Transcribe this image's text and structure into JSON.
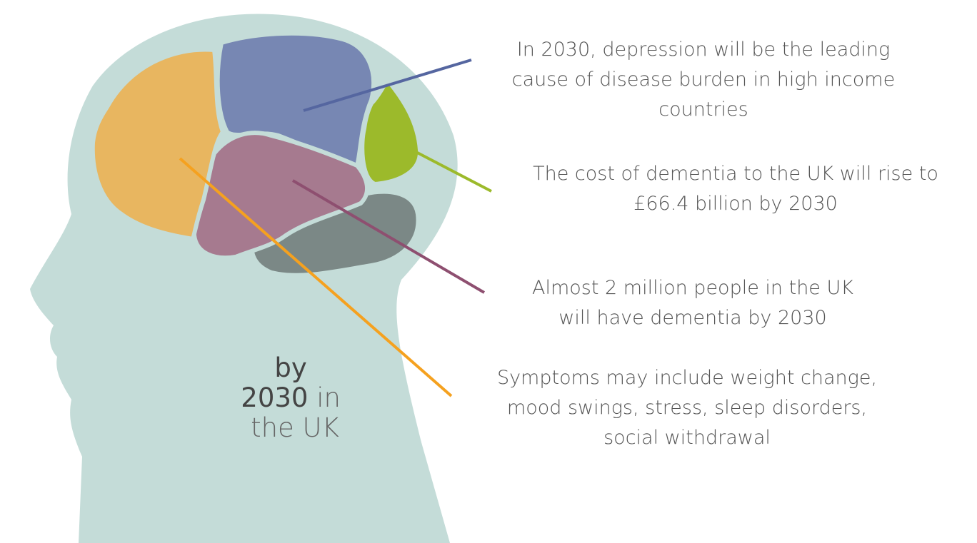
{
  "head_label": {
    "line1": "by",
    "line2_strong": "2030",
    "line2_light": "in",
    "line3": "the UK"
  },
  "annotations": [
    {
      "lines": [
        "In 2030, depression will be the leading",
        "cause of disease burden in high income",
        "countries"
      ]
    },
    {
      "lines": [
        "The cost of dementia to the UK will rise to",
        "£66.4 billion by 2030"
      ]
    },
    {
      "lines": [
        "Almost 2 million people in the UK",
        "will have dementia by 2030"
      ]
    },
    {
      "lines": [
        "Symptoms may include weight change,",
        "mood swings, stress, sleep disorders,",
        "social withdrawal"
      ]
    }
  ]
}
